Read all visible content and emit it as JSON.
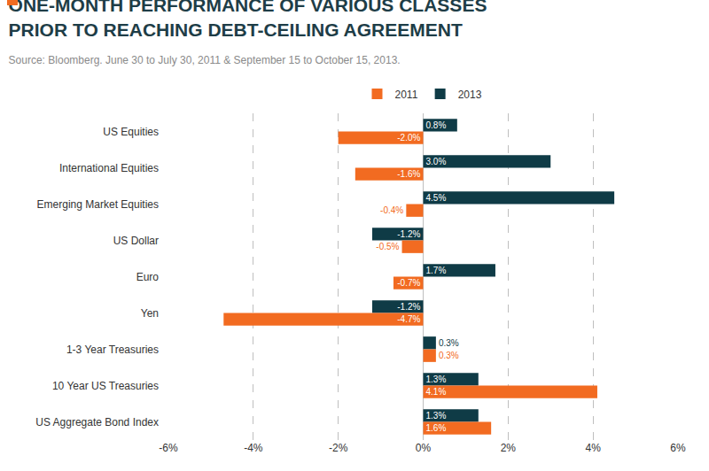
{
  "chart_data": {
    "type": "bar",
    "orientation": "horizontal",
    "title": "ONE-MONTH PERFORMANCE OF VARIOUS CLASSES\nPRIOR TO REACHING DEBT-CEILING AGREEMENT",
    "subtitle": "Source: Bloomberg. June 30 to July 30, 2011 & September 15 to October 15, 2013.",
    "categories": [
      "US Equities",
      "International Equities",
      "Emerging Market Equities",
      "US Dollar",
      "Euro",
      "Yen",
      "1-3 Year Treasuries",
      "10 Year US Treasuries",
      "US Aggregate Bond Index"
    ],
    "series": [
      {
        "name": "2011",
        "color": "#f26b21",
        "values": [
          -2.0,
          -1.6,
          -0.4,
          -0.5,
          -0.7,
          -4.7,
          0.3,
          4.1,
          1.6
        ],
        "value_labels": [
          "-2.0%",
          "-1.6%",
          "-0.4%",
          "-0.5%",
          "-0.7%",
          "-4.7%",
          "0.3%",
          "4.1%",
          "1.6%"
        ]
      },
      {
        "name": "2013",
        "color": "#0f3b46",
        "values": [
          0.8,
          3.0,
          4.5,
          -1.2,
          1.7,
          -1.2,
          0.3,
          1.3,
          1.3
        ],
        "value_labels": [
          "0.8%",
          "3.0%",
          "4.5%",
          "-1.2%",
          "1.7%",
          "-1.2%",
          "0.3%",
          "1.3%",
          "1.3%"
        ]
      }
    ],
    "xlim": [
      -6,
      6
    ],
    "xticks": [
      {
        "value": -6,
        "label": "-6%"
      },
      {
        "value": -4,
        "label": "-4%"
      },
      {
        "value": -2,
        "label": "-2%"
      },
      {
        "value": 0,
        "label": "0%"
      },
      {
        "value": 2,
        "label": "2%"
      },
      {
        "value": 4,
        "label": "4%"
      },
      {
        "value": 6,
        "label": "6%"
      }
    ],
    "grid": true,
    "legend": "top",
    "data_labels": true
  }
}
